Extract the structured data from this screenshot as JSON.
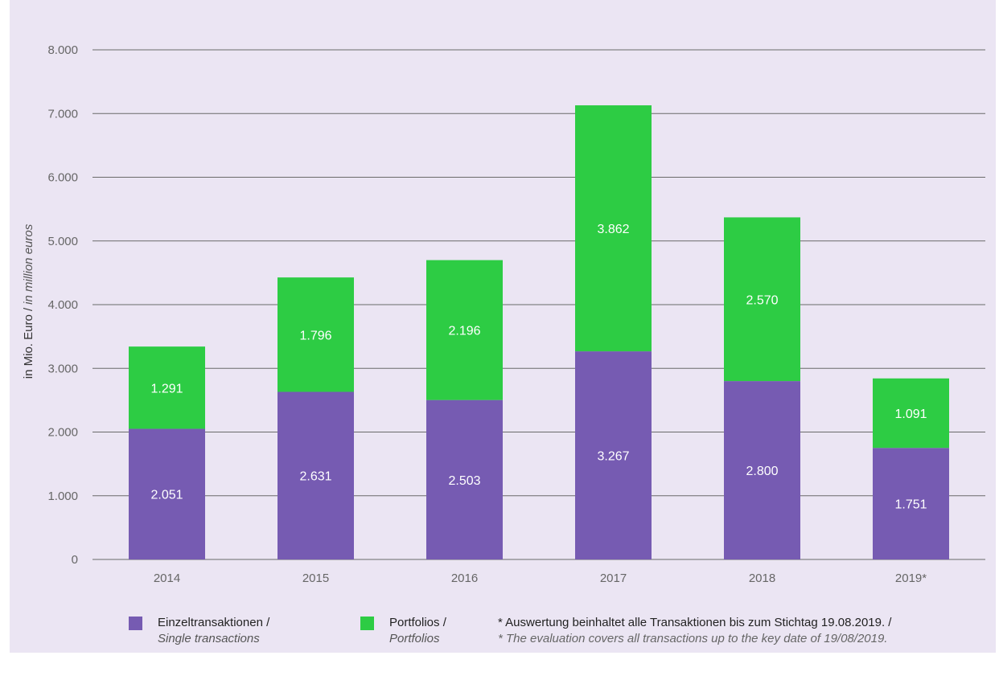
{
  "chart_data": {
    "type": "bar",
    "stacked": true,
    "categories": [
      "2014",
      "2015",
      "2016",
      "2017",
      "2018",
      "2019*"
    ],
    "series": [
      {
        "name": "Einzeltransaktionen / Single transactions",
        "color": "#765bb2",
        "values": [
          2051,
          2631,
          2503,
          3267,
          2800,
          1751
        ],
        "labels": [
          "2.051",
          "2.631",
          "2.503",
          "3.267",
          "2.800",
          "1.751"
        ]
      },
      {
        "name": "Portfolios / Portfolios",
        "color": "#2dcc44",
        "values": [
          1291,
          1796,
          2196,
          3862,
          2570,
          1091
        ],
        "labels": [
          "1.291",
          "1.796",
          "2.196",
          "3.862",
          "2.570",
          "1.091"
        ]
      }
    ],
    "ylabel_de": "in Mio. Euro /",
    "ylabel_en": "in million euros",
    "ylim": [
      0,
      8000
    ],
    "yticks": [
      0,
      1000,
      2000,
      3000,
      4000,
      5000,
      6000,
      7000,
      8000
    ],
    "ytick_labels": [
      "0",
      "1.000",
      "2.000",
      "3.000",
      "4.000",
      "5.000",
      "6.000",
      "7.000",
      "8.000"
    ],
    "grid": true,
    "legend_position": "bottom"
  },
  "legend": {
    "single_de": "Einzeltransaktionen /",
    "single_en": "Single transactions",
    "portfolio_de": "Portfolios /",
    "portfolio_en": "Portfolios"
  },
  "note": {
    "de": "* Auswertung beinhaltet alle Transaktionen bis zum Stichtag 19.08.2019. /",
    "en": "* The evaluation covers all transactions up to the key date of 19/08/2019."
  },
  "colors": {
    "background": "#ebe5f3",
    "single": "#765bb2",
    "portfolio": "#2dcc44",
    "grid": "#6a6a6a"
  }
}
